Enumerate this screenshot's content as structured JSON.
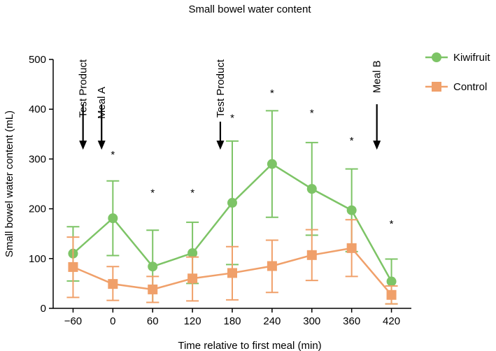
{
  "chart_data": {
    "type": "line",
    "title": "Small bowel water content",
    "xlabel": "Time relative to first meal (min)",
    "ylabel": "Small bowel water content (mL)",
    "x": [
      -60,
      0,
      60,
      120,
      180,
      240,
      300,
      360,
      420
    ],
    "xlim": [
      -90,
      450
    ],
    "ylim": [
      0,
      500
    ],
    "x_tick_labels": [
      "−60",
      "0",
      "60",
      "120",
      "180",
      "240",
      "300",
      "360",
      "420"
    ],
    "y_tick_labels": [
      "0",
      "100",
      "200",
      "300",
      "400",
      "500"
    ],
    "y_ticks": [
      0,
      100,
      200,
      300,
      400,
      500
    ],
    "grid": false,
    "legend_position": "top-right",
    "series": [
      {
        "name": "Kiwifruit",
        "color": "#7dc466",
        "marker": "circle",
        "values": [
          110,
          181,
          84,
          111,
          212,
          290,
          240,
          197,
          54
        ],
        "error_low": [
          55,
          106,
          12,
          50,
          88,
          183,
          147,
          114,
          9
        ],
        "error_high": [
          164,
          256,
          157,
          173,
          336,
          397,
          333,
          280,
          99
        ]
      },
      {
        "name": "Control",
        "color": "#f0a06a",
        "marker": "square",
        "values": [
          83,
          49,
          38,
          60,
          71,
          85,
          107,
          121,
          27
        ],
        "error_low": [
          22,
          16,
          12,
          15,
          17,
          32,
          56,
          64,
          9
        ],
        "error_high": [
          143,
          84,
          64,
          103,
          124,
          137,
          158,
          178,
          45
        ]
      }
    ],
    "significance": [
      {
        "x": 0,
        "y": 313,
        "label": "*"
      },
      {
        "x": 60,
        "y": 237,
        "label": "*"
      },
      {
        "x": 120,
        "y": 237,
        "label": "*"
      },
      {
        "x": 180,
        "y": 387,
        "label": "*"
      },
      {
        "x": 240,
        "y": 437,
        "label": "*"
      },
      {
        "x": 300,
        "y": 397,
        "label": "*"
      },
      {
        "x": 360,
        "y": 341,
        "label": "*"
      },
      {
        "x": 420,
        "y": 174,
        "label": "*"
      }
    ],
    "annotations": [
      {
        "label": "Test Product",
        "x": -45,
        "text_y": 500,
        "arrow_from": 410,
        "arrow_to": 320
      },
      {
        "label": "Meal A",
        "x": -17,
        "text_y": 445,
        "arrow_from": 410,
        "arrow_to": 320
      },
      {
        "label": "Test Product",
        "x": 162,
        "text_y": 500,
        "arrow_from": 375,
        "arrow_to": 320
      },
      {
        "label": "Meal B",
        "x": 398,
        "text_y": 498,
        "arrow_from": 410,
        "arrow_to": 320
      }
    ]
  }
}
